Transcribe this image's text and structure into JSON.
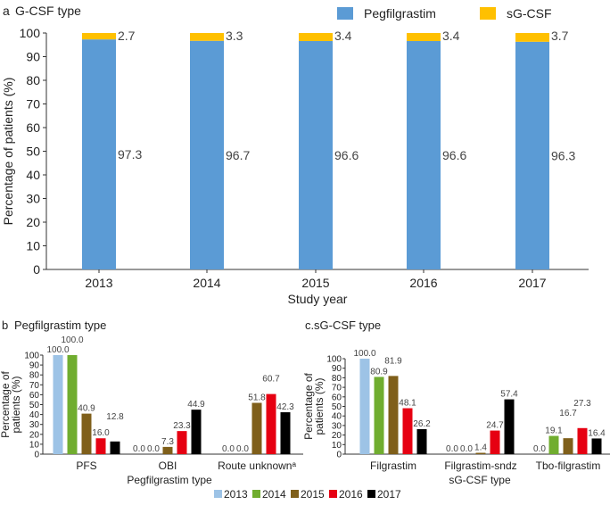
{
  "chart_data": [
    {
      "type": "bar",
      "stacked": true,
      "panel": "a",
      "title": "G-CSF type",
      "xlabel": "Study year",
      "ylabel": "Percentage of patients (%)",
      "ylim": [
        0,
        100
      ],
      "yticks": [
        0,
        10,
        20,
        30,
        40,
        50,
        60,
        70,
        80,
        90,
        100
      ],
      "categories": [
        "2013",
        "2014",
        "2015",
        "2016",
        "2017"
      ],
      "series": [
        {
          "name": "Pegfilgrastim",
          "color": "#5b9bd5",
          "values": [
            97.3,
            96.7,
            96.6,
            96.6,
            96.3
          ]
        },
        {
          "name": "sG-CSF",
          "color": "#ffc000",
          "values": [
            2.7,
            3.3,
            3.4,
            3.4,
            3.7
          ]
        }
      ],
      "legend": "top"
    },
    {
      "type": "bar",
      "panel": "b",
      "title": "Pegfilgrastim type",
      "xlabel": "Pegfilgrastim type",
      "ylabel": "Percentage of patients (%)",
      "ylim": [
        0,
        100
      ],
      "yticks": [
        0,
        10,
        20,
        30,
        40,
        50,
        60,
        70,
        80,
        90,
        100
      ],
      "categories": [
        "PFS",
        "OBI",
        "Route unknownᵃ"
      ],
      "series": [
        {
          "name": "2013",
          "values": [
            100.0,
            0.0,
            0.0
          ]
        },
        {
          "name": "2014",
          "values": [
            100.0,
            0.0,
            0.0
          ]
        },
        {
          "name": "2015",
          "values": [
            40.9,
            7.3,
            51.8
          ]
        },
        {
          "name": "2016",
          "values": [
            16.0,
            23.3,
            60.7
          ]
        },
        {
          "name": "2017",
          "values": [
            12.8,
            44.9,
            42.3
          ]
        }
      ]
    },
    {
      "type": "bar",
      "panel": "c.",
      "title": "sG-CSF type",
      "xlabel": "sG-CSF type",
      "ylabel": "Percentage of patients (%)",
      "ylim": [
        0,
        100
      ],
      "yticks": [
        0,
        10,
        20,
        30,
        40,
        50,
        60,
        70,
        80,
        90,
        100
      ],
      "categories": [
        "Filgrastim",
        "Filgrastim-sndz",
        "Tbo-filgrastim"
      ],
      "series": [
        {
          "name": "2013",
          "values": [
            100.0,
            0.0,
            0.0
          ]
        },
        {
          "name": "2014",
          "values": [
            80.9,
            0.0,
            19.1
          ]
        },
        {
          "name": "2015",
          "values": [
            81.9,
            1.4,
            16.7
          ]
        },
        {
          "name": "2016",
          "values": [
            48.1,
            24.7,
            27.3
          ]
        },
        {
          "name": "2017",
          "values": [
            26.2,
            57.4,
            16.4
          ]
        }
      ]
    }
  ],
  "year_legend": [
    {
      "name": "2013",
      "color": "#9dc3e6"
    },
    {
      "name": "2014",
      "color": "#70ad2f"
    },
    {
      "name": "2015",
      "color": "#7f5f1a"
    },
    {
      "name": "2016",
      "color": "#e60012"
    },
    {
      "name": "2017",
      "color": "#000000"
    }
  ]
}
